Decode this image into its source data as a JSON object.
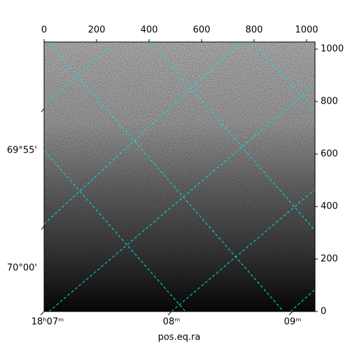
{
  "chart_data": {
    "type": "image",
    "xlabel": "pos.eq.ra",
    "xlim": [
      0,
      1032
    ],
    "xticks": [
      0,
      200,
      400,
      600,
      800,
      1000
    ],
    "ylim": [
      0,
      1027
    ],
    "yticks": [
      0,
      200,
      400,
      600,
      800,
      1000
    ],
    "ra_ticks": [
      "18ʰ07ᵐ",
      "08ᵐ",
      "09ᵐ"
    ],
    "dec_ticks": [
      "69°55'",
      "70°00'"
    ],
    "grid_color": "#00e5e5"
  }
}
